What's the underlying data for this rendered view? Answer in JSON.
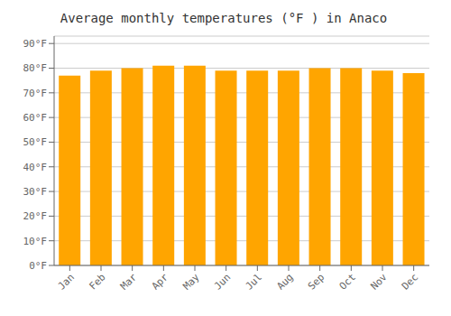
{
  "chart_data": {
    "type": "bar",
    "title": "Average monthly temperatures (°F ) in Anaco",
    "categories": [
      "Jan",
      "Feb",
      "Mar",
      "Apr",
      "May",
      "Jun",
      "Jul",
      "Aug",
      "Sep",
      "Oct",
      "Nov",
      "Dec"
    ],
    "values": [
      77,
      79,
      80,
      81,
      81,
      79,
      79,
      79,
      80,
      80,
      79,
      78
    ],
    "color": "#FFA500",
    "ylim": [
      0,
      93
    ],
    "yticks": [
      {
        "value": 0,
        "label": "0°F"
      },
      {
        "value": 10,
        "label": "10°F"
      },
      {
        "value": 20,
        "label": "20°F"
      },
      {
        "value": 30,
        "label": "30°F"
      },
      {
        "value": 40,
        "label": "40°F"
      },
      {
        "value": 50,
        "label": "50°F"
      },
      {
        "value": 60,
        "label": "60°F"
      },
      {
        "value": 70,
        "label": "70°F"
      },
      {
        "value": 80,
        "label": "80°F"
      },
      {
        "value": 90,
        "label": "90°F"
      }
    ],
    "grid": true
  }
}
